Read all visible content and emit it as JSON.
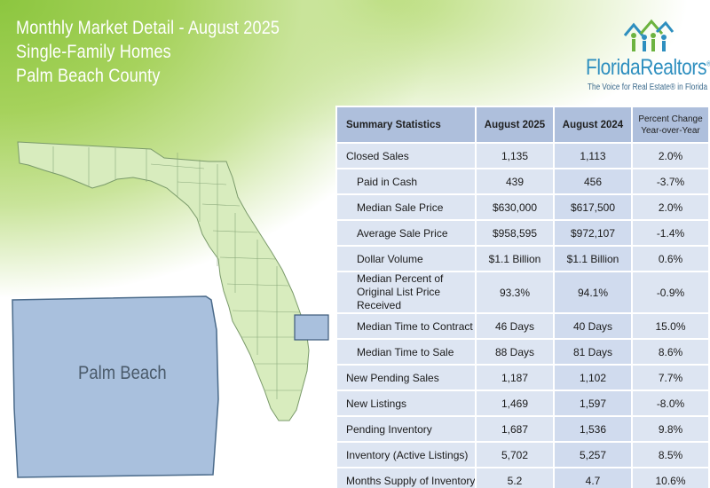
{
  "header": {
    "title": "Monthly Market Detail - August 2025",
    "property_type": "Single-Family Homes",
    "region": "Palm Beach County"
  },
  "logo": {
    "name": "FloridaRealtors",
    "registered": "®",
    "tagline": "The Voice for Real Estate® in Florida",
    "icon": "houses-people-icon"
  },
  "map": {
    "inset_label": "Palm Beach",
    "highlight_color": "#a9c0dd",
    "state_color": "#d8ecbe"
  },
  "table": {
    "headers": [
      "Summary Statistics",
      "August 2025",
      "August 2024",
      "Percent Change Year-over-Year"
    ],
    "header_pct_line1": "Percent Change",
    "header_pct_line2": "Year-over-Year",
    "rows": [
      {
        "label": "Closed Sales",
        "a": "1,135",
        "b": "1,113",
        "pct": "2.0%"
      },
      {
        "label": "Paid in Cash",
        "a": "439",
        "b": "456",
        "pct": "-3.7%"
      },
      {
        "label": "Median Sale Price",
        "a": "$630,000",
        "b": "$617,500",
        "pct": "2.0%"
      },
      {
        "label": "Average Sale Price",
        "a": "$958,595",
        "b": "$972,107",
        "pct": "-1.4%"
      },
      {
        "label": "Dollar Volume",
        "a": "$1.1 Billion",
        "b": "$1.1 Billion",
        "pct": "0.6%"
      },
      {
        "label": "Median Percent of Original List Price Received",
        "a": "93.3%",
        "b": "94.1%",
        "pct": "-0.9%"
      },
      {
        "label": "Median Time to Contract",
        "a": "46 Days",
        "b": "40 Days",
        "pct": "15.0%"
      },
      {
        "label": "Median Time to Sale",
        "a": "88 Days",
        "b": "81 Days",
        "pct": "8.6%"
      },
      {
        "label": "New Pending Sales",
        "a": "1,187",
        "b": "1,102",
        "pct": "7.7%"
      },
      {
        "label": "New Listings",
        "a": "1,469",
        "b": "1,597",
        "pct": "-8.0%"
      },
      {
        "label": "Pending Inventory",
        "a": "1,687",
        "b": "1,536",
        "pct": "9.8%"
      },
      {
        "label": "Inventory (Active Listings)",
        "a": "5,702",
        "b": "5,257",
        "pct": "8.5%"
      },
      {
        "label": "Months Supply of Inventory",
        "a": "5.2",
        "b": "4.7",
        "pct": "10.6%"
      }
    ]
  }
}
